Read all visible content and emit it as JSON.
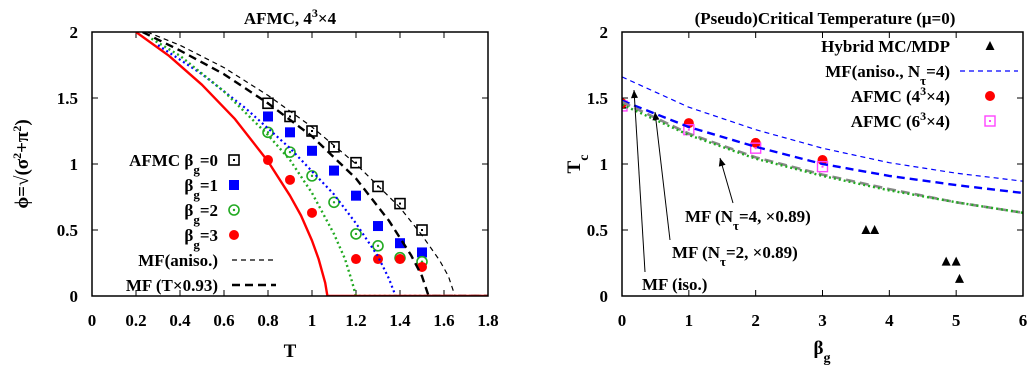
{
  "chart_data": [
    {
      "type": "line",
      "title": "AFMC, 4³×4",
      "xlabel": "T",
      "ylabel": "ϕ=√(σ²+π²)",
      "xlim": [
        0,
        1.8
      ],
      "ylim": [
        0,
        2
      ],
      "xticks": [
        "0",
        "0.2",
        "0.4",
        "0.6",
        "0.8",
        "1",
        "1.2",
        "1.4",
        "1.6",
        "1.8"
      ],
      "yticks": [
        "0",
        "0.5",
        "1",
        "1.5",
        "2"
      ],
      "legend_position": "left",
      "series": [
        {
          "name": "AFMC βg=0",
          "style": "open-square",
          "color": "#000000",
          "x": [
            0.8,
            0.9,
            1.0,
            1.1,
            1.2,
            1.3,
            1.4,
            1.5
          ],
          "y": [
            1.46,
            1.36,
            1.25,
            1.13,
            1.01,
            0.83,
            0.7,
            0.5
          ]
        },
        {
          "name": "βg=1",
          "style": "filled-square",
          "color": "#0000ff",
          "x": [
            0.8,
            0.9,
            1.0,
            1.1,
            1.2,
            1.3,
            1.4,
            1.5
          ],
          "y": [
            1.36,
            1.24,
            1.1,
            0.95,
            0.76,
            0.53,
            0.4,
            0.33
          ]
        },
        {
          "name": "βg=2",
          "style": "circle-dot",
          "color": "#22aa22",
          "x": [
            0.8,
            0.9,
            1.0,
            1.1,
            1.2,
            1.3,
            1.4,
            1.5
          ],
          "y": [
            1.24,
            1.09,
            0.91,
            0.71,
            0.47,
            0.38,
            0.29,
            0.26
          ]
        },
        {
          "name": "βg=3",
          "style": "filled-circle",
          "color": "#ff0000",
          "x": [
            0.8,
            0.9,
            1.0,
            1.2,
            1.3,
            1.4,
            1.5
          ],
          "y": [
            1.03,
            0.88,
            0.63,
            0.28,
            0.28,
            0.28,
            0.22
          ]
        },
        {
          "name": "MF(aniso.)",
          "style": "thin-dashed",
          "color": "#000000",
          "x": [
            0.25,
            0.4,
            0.6,
            0.8,
            1.0,
            1.2,
            1.4,
            1.5,
            1.58,
            1.62,
            1.65,
            1.8
          ],
          "y": [
            2.0,
            1.9,
            1.73,
            1.52,
            1.28,
            1.0,
            0.67,
            0.46,
            0.27,
            0.15,
            0.0,
            0.0
          ]
        },
        {
          "name": "MF (T×0.93)",
          "style": "thick-dashed",
          "color": "#000000",
          "x": [
            0.23,
            0.4,
            0.6,
            0.8,
            1.0,
            1.2,
            1.35,
            1.45,
            1.5,
            1.53,
            1.8
          ],
          "y": [
            2.0,
            1.86,
            1.68,
            1.46,
            1.21,
            0.89,
            0.57,
            0.31,
            0.15,
            0.0,
            0.0
          ]
        },
        {
          "name": "",
          "style": "dotted-blue",
          "color": "#0000ff",
          "x": [
            0.3,
            0.5,
            0.7,
            0.9,
            1.1,
            1.2,
            1.3,
            1.35,
            1.38,
            1.8
          ],
          "y": [
            1.9,
            1.68,
            1.42,
            1.12,
            0.77,
            0.55,
            0.3,
            0.13,
            0.0,
            0.0
          ]
        },
        {
          "name": "",
          "style": "dotted-green",
          "color": "#22aa22",
          "x": [
            0.27,
            0.4,
            0.6,
            0.8,
            0.9,
            1.0,
            1.1,
            1.15,
            1.18,
            1.2,
            1.8
          ],
          "y": [
            1.95,
            1.82,
            1.55,
            1.22,
            1.03,
            0.78,
            0.47,
            0.28,
            0.12,
            0.0,
            0.0
          ]
        },
        {
          "name": "",
          "style": "solid-red",
          "color": "#ff0000",
          "x": [
            0.2,
            0.35,
            0.5,
            0.65,
            0.8,
            0.9,
            0.95,
            1.0,
            1.03,
            1.06,
            1.07,
            1.8
          ],
          "y": [
            2.0,
            1.82,
            1.6,
            1.34,
            1.02,
            0.76,
            0.61,
            0.42,
            0.28,
            0.1,
            0.0,
            0.0
          ]
        }
      ]
    },
    {
      "type": "line",
      "title": "(Pseudo)Critical Temperature (μ=0)",
      "xlabel": "βg",
      "ylabel": "Tc",
      "xlim": [
        0,
        6
      ],
      "ylim": [
        0,
        2
      ],
      "xticks": [
        "0",
        "1",
        "2",
        "3",
        "4",
        "5",
        "6"
      ],
      "yticks": [
        "0",
        "0.5",
        "1",
        "1.5",
        "2"
      ],
      "legend_position": "top-right",
      "series": [
        {
          "name": "Hybrid MC/MDP",
          "style": "filled-triangle",
          "color": "#000000",
          "x": [
            0.0,
            3.65,
            3.78,
            4.85,
            5.0,
            5.05
          ],
          "y": [
            1.45,
            0.5,
            0.5,
            0.26,
            0.26,
            0.13
          ]
        },
        {
          "name": "MF(aniso., Nτ=4)",
          "style": "thin-dashed",
          "color": "#0000ff",
          "x": [
            0,
            1,
            2,
            3,
            4,
            5,
            6
          ],
          "y": [
            1.66,
            1.43,
            1.26,
            1.12,
            1.01,
            0.93,
            0.87
          ]
        },
        {
          "name": "AFMC (4³×4)",
          "style": "filled-circle",
          "color": "#ff0000",
          "x": [
            0,
            1,
            2,
            3
          ],
          "y": [
            1.46,
            1.31,
            1.16,
            1.03
          ]
        },
        {
          "name": "AFMC (6³×4)",
          "style": "open-square-dot",
          "color": "#ff44ff",
          "x": [
            0,
            1,
            2,
            3
          ],
          "y": [
            1.44,
            1.26,
            1.12,
            0.98
          ]
        },
        {
          "name": "MF (Nτ=4, ×0.89)",
          "style": "thick-dashed",
          "color": "#0000ff",
          "x": [
            0,
            1,
            2,
            3,
            4,
            5,
            6
          ],
          "y": [
            1.48,
            1.28,
            1.13,
            1.0,
            0.91,
            0.84,
            0.78
          ]
        },
        {
          "name": "MF (Nτ=2, ×0.89)",
          "style": "dashed-gray",
          "color": "#888888",
          "x": [
            0,
            1,
            2,
            3,
            4,
            5,
            6
          ],
          "y": [
            1.47,
            1.23,
            1.05,
            0.92,
            0.81,
            0.71,
            0.63
          ]
        },
        {
          "name": "MF (iso.)",
          "style": "dotted-green",
          "color": "#22aa22",
          "x": [
            0,
            1,
            2,
            3,
            4,
            5,
            6
          ],
          "y": [
            1.45,
            1.22,
            1.04,
            0.91,
            0.8,
            0.71,
            0.63
          ]
        }
      ]
    }
  ]
}
